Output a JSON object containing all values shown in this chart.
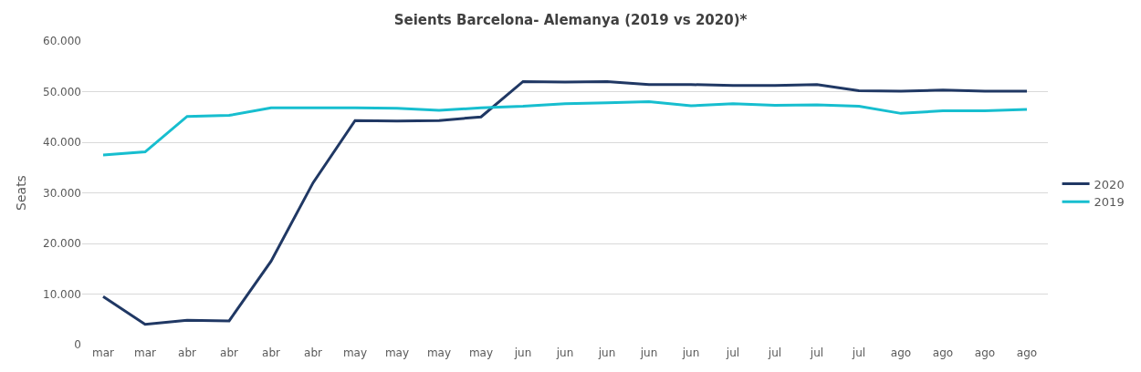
{
  "chart_data": {
    "type": "line",
    "title": "Seients Barcelona- Alemanya (2019 vs 2020)*",
    "ylabel": "Seats",
    "categories": [
      "mar",
      "mar",
      "abr",
      "abr",
      "abr",
      "abr",
      "may",
      "may",
      "may",
      "may",
      "jun",
      "jun",
      "jun",
      "jun",
      "jun",
      "jul",
      "jul",
      "jul",
      "jul",
      "ago",
      "ago",
      "ago",
      "ago"
    ],
    "series": [
      {
        "name": "2020",
        "color": "#203864",
        "values": [
          9500,
          4000,
          4800,
          4700,
          16500,
          32000,
          44300,
          44200,
          44300,
          45000,
          52000,
          51900,
          52000,
          51400,
          51400,
          51200,
          51200,
          51400,
          50200,
          50100,
          50300,
          50100,
          50100
        ]
      },
      {
        "name": "2019",
        "color": "#17becf",
        "values": [
          37500,
          38100,
          45100,
          45300,
          46800,
          46800,
          46800,
          46700,
          46300,
          46800,
          47100,
          47600,
          47800,
          48000,
          47200,
          47600,
          47300,
          47400,
          47100,
          45700,
          46200,
          46200,
          46500
        ]
      }
    ],
    "ylim": [
      0,
      60000
    ],
    "yticks": [
      {
        "value": 0,
        "label": "0"
      },
      {
        "value": 10000,
        "label": "10.000"
      },
      {
        "value": 20000,
        "label": "20.000"
      },
      {
        "value": 30000,
        "label": "30.000"
      },
      {
        "value": 40000,
        "label": "40.000"
      },
      {
        "value": 50000,
        "label": "50.000"
      },
      {
        "value": 60000,
        "label": "60.000"
      }
    ],
    "grid": "y",
    "legend": "right",
    "marker": "none",
    "line_style": "solid"
  }
}
